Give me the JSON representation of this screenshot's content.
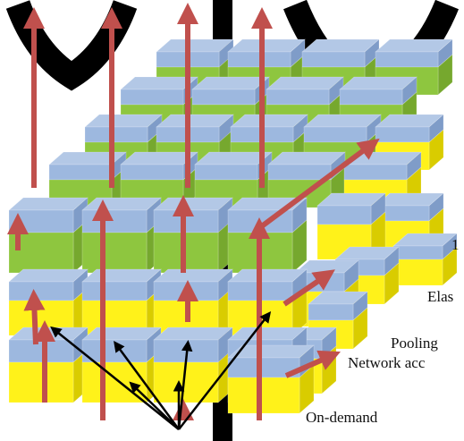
{
  "labels": {
    "elastic": "Elas",
    "pooling": "Pooling",
    "network_access": "Network acc",
    "on_demand": "On-demand",
    "partial": "1"
  },
  "colors": {
    "blue_top": "#b3c8e6",
    "blue_front": "#9db8df",
    "blue_side": "#7f9cc8",
    "green_front": "#8ec63f",
    "green_side": "#76a82e",
    "yellow_front": "#fff21a",
    "yellow_side": "#d9cc00",
    "red_arrow": "#c0504d",
    "black_arrow": "#000000"
  }
}
